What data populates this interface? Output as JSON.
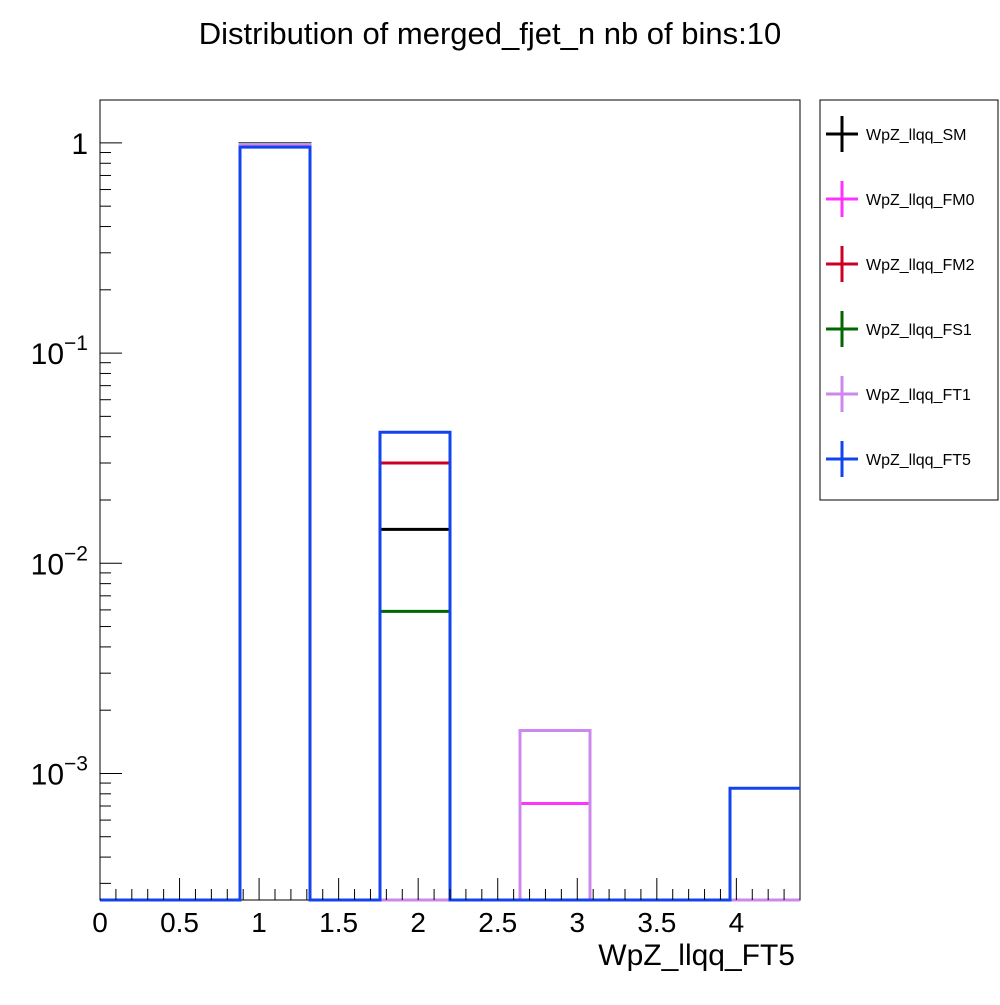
{
  "chart_data": {
    "type": "step-histogram",
    "title": "Distribution of merged_fjet_n nb of bins:10",
    "xlabel": "WpZ_llqq_FT5",
    "ylabel": "",
    "xlim": [
      0,
      4.4
    ],
    "ylim": [
      0.00025,
      1.6
    ],
    "yscale": "log",
    "x_ticks": [
      0,
      0.5,
      1,
      1.5,
      2,
      2.5,
      3,
      3.5,
      4
    ],
    "x_tick_labels": [
      "0",
      "0.5",
      "1",
      "1.5",
      "2",
      "2.5",
      "3",
      "3.5",
      "4"
    ],
    "y_ticks": [
      0.001,
      0.01,
      0.1,
      1
    ],
    "y_tick_labels": [
      {
        "base": "10",
        "exp": "−3"
      },
      {
        "base": "10",
        "exp": "−2"
      },
      {
        "base": "10",
        "exp": "−1"
      },
      {
        "base": "1",
        "exp": ""
      }
    ],
    "grid": false,
    "legend_position": "right-outside-top",
    "bin_edges": [
      0,
      0.44,
      0.88,
      1.32,
      1.76,
      2.2,
      2.64,
      3.08,
      3.52,
      3.96,
      4.4
    ],
    "series": [
      {
        "name": "WpZ_llqq_SM",
        "color": "#000000",
        "values": [
          0,
          0,
          0.985,
          0,
          0.0145,
          0,
          0,
          0,
          0,
          0
        ]
      },
      {
        "name": "WpZ_llqq_FM0",
        "color": "#ff33ff",
        "values": [
          0,
          0,
          0.99,
          0,
          0.0,
          0,
          0.00072,
          0,
          0,
          0
        ]
      },
      {
        "name": "WpZ_llqq_FM2",
        "color": "#cc0022",
        "values": [
          0,
          0,
          0.97,
          0,
          0.03,
          0,
          0,
          0,
          0,
          0
        ]
      },
      {
        "name": "WpZ_llqq_FS1",
        "color": "#006600",
        "values": [
          0,
          0,
          0.994,
          0,
          0.0059,
          0,
          0,
          0,
          0,
          0
        ]
      },
      {
        "name": "WpZ_llqq_FT1",
        "color": "#cc88ee",
        "values": [
          0,
          0,
          0.985,
          0,
          0.0,
          0,
          0.0016,
          0,
          0,
          0
        ]
      },
      {
        "name": "WpZ_llqq_FT5",
        "color": "#1144ee",
        "values": [
          0,
          0,
          0.955,
          0,
          0.042,
          0,
          0,
          0,
          0,
          0.00085
        ]
      }
    ]
  }
}
